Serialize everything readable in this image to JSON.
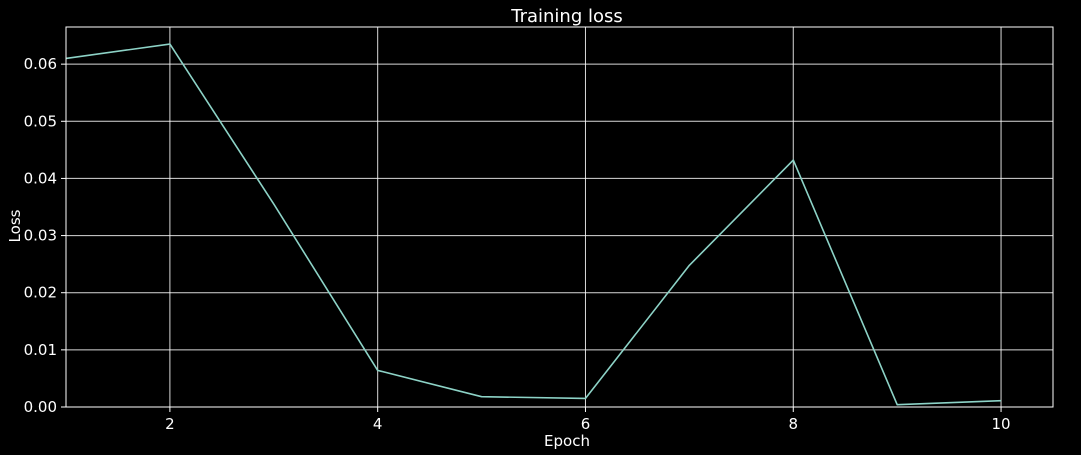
{
  "chart_data": {
    "type": "line",
    "title": "Training loss",
    "xlabel": "Epoch",
    "ylabel": "Loss",
    "xlim": [
      1,
      10.5
    ],
    "ylim": [
      0,
      0.0665
    ],
    "x_ticks": [
      2,
      4,
      6,
      8,
      10
    ],
    "x_tick_labels": [
      "2",
      "4",
      "6",
      "8",
      "10"
    ],
    "y_ticks": [
      0,
      0.01,
      0.02,
      0.03,
      0.04,
      0.05,
      0.06
    ],
    "y_tick_labels": [
      "0.00",
      "0.01",
      "0.02",
      "0.03",
      "0.04",
      "0.05",
      "0.06"
    ],
    "grid": true,
    "series": [
      {
        "x": [
          1,
          2,
          3,
          4,
          5,
          6,
          7,
          8,
          9,
          10
        ],
        "values": [
          0.061,
          0.0635,
          0.0355,
          0.0064,
          0.0018,
          0.0015,
          0.0248,
          0.0432,
          0.0004,
          0.0011
        ],
        "color": "#8dd3c7"
      }
    ]
  },
  "colors": {
    "background": "#000000",
    "foreground": "#ffffff",
    "line": "#8dd3c7"
  }
}
